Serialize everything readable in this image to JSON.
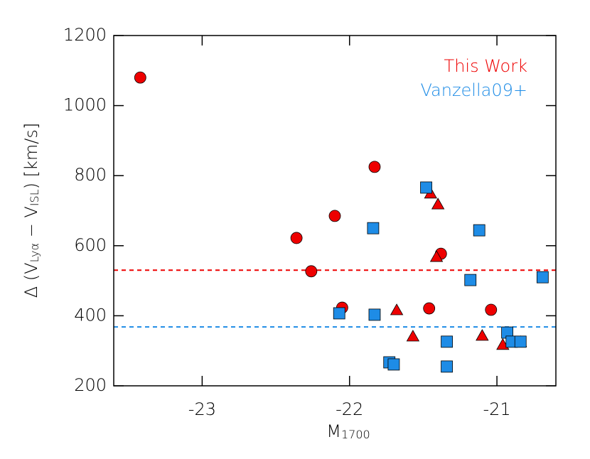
{
  "chart_data": {
    "type": "scatter",
    "xlabel": [
      "M",
      "1700"
    ],
    "ylabel": [
      "Δ (V",
      "Lyα",
      " − V",
      "ISL",
      ") [km/s]"
    ],
    "xlim": [
      -23.6,
      -20.6
    ],
    "ylim": [
      200,
      1200
    ],
    "xticks": [
      -23,
      -22,
      -21
    ],
    "yticks": [
      200,
      400,
      600,
      800,
      1000,
      1200
    ],
    "legend": "upper right",
    "series": [
      {
        "name": "This Work",
        "color": "#ee0000",
        "marker": "circle",
        "x": [
          -23.42,
          -22.36,
          -22.26,
          -22.1,
          -22.05,
          -21.83,
          -21.38,
          -21.46,
          -21.04
        ],
        "values": [
          1080,
          622,
          527,
          685,
          423,
          825,
          577,
          421,
          417
        ]
      },
      {
        "color": "#ee0000",
        "marker": "triangle",
        "x": [
          -21.68,
          -21.57,
          -21.45,
          -21.4,
          -21.41,
          -21.1,
          -20.96,
          -20.84
        ],
        "values": [
          415,
          340,
          748,
          717,
          567,
          342,
          316,
          324
        ]
      },
      {
        "name": "Vanzella09+",
        "color": "#1e8ce6",
        "marker": "square",
        "x": [
          -22.07,
          -21.84,
          -21.83,
          -21.73,
          -21.7,
          -21.48,
          -21.34,
          -21.34,
          -21.12,
          -21.18,
          -20.93,
          -20.9,
          -20.84,
          -20.69
        ],
        "values": [
          407,
          650,
          403,
          267,
          261,
          766,
          326,
          255,
          644,
          502,
          352,
          326,
          326,
          510
        ]
      }
    ],
    "reference_lines": [
      {
        "value": 530,
        "color": "#ee0000"
      },
      {
        "value": 368,
        "color": "#1e8ce6"
      }
    ]
  }
}
